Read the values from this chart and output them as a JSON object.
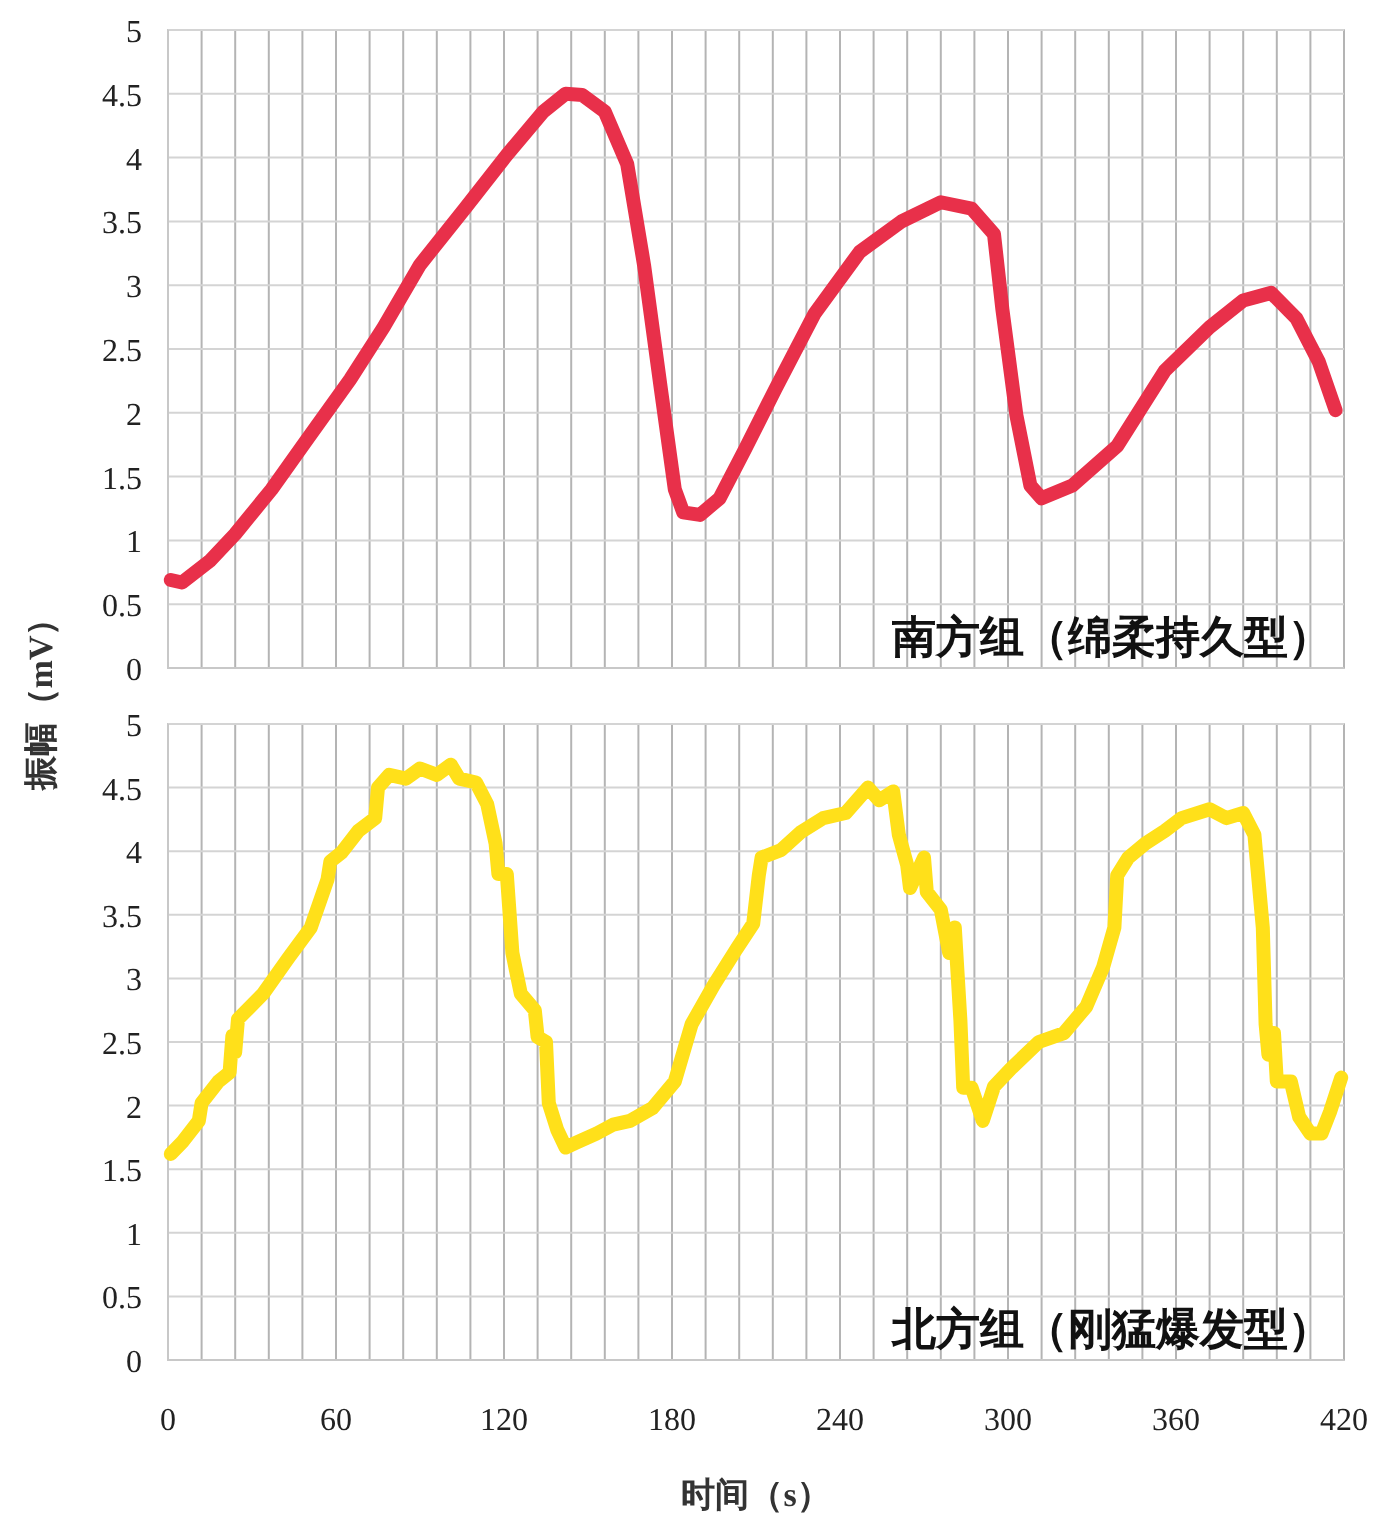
{
  "chart_data": [
    {
      "type": "line",
      "ylabel": "振幅（mV）",
      "annotations": [
        "南方组（绵柔持久型）"
      ],
      "xlim": [
        0,
        420
      ],
      "ylim": [
        0,
        5
      ],
      "xticks": [
        {
          "value": 0,
          "label": null
        },
        {
          "value": 12,
          "label": null
        },
        {
          "value": 24,
          "label": null
        },
        {
          "value": 36,
          "label": null
        },
        {
          "value": 48,
          "label": null
        },
        {
          "value": 60,
          "label": null
        },
        {
          "value": 72,
          "label": null
        },
        {
          "value": 84,
          "label": null
        },
        {
          "value": 96,
          "label": null
        },
        {
          "value": 108,
          "label": null
        },
        {
          "value": 120,
          "label": null
        },
        {
          "value": 132,
          "label": null
        },
        {
          "value": 144,
          "label": null
        },
        {
          "value": 156,
          "label": null
        },
        {
          "value": 168,
          "label": null
        },
        {
          "value": 180,
          "label": null
        },
        {
          "value": 192,
          "label": null
        },
        {
          "value": 204,
          "label": null
        },
        {
          "value": 216,
          "label": null
        },
        {
          "value": 228,
          "label": null
        },
        {
          "value": 240,
          "label": null
        },
        {
          "value": 252,
          "label": null
        },
        {
          "value": 264,
          "label": null
        },
        {
          "value": 276,
          "label": null
        },
        {
          "value": 288,
          "label": null
        },
        {
          "value": 300,
          "label": null
        },
        {
          "value": 312,
          "label": null
        },
        {
          "value": 324,
          "label": null
        },
        {
          "value": 336,
          "label": null
        },
        {
          "value": 348,
          "label": null
        },
        {
          "value": 360,
          "label": null
        },
        {
          "value": 372,
          "label": null
        },
        {
          "value": 384,
          "label": null
        },
        {
          "value": 396,
          "label": null
        },
        {
          "value": 408,
          "label": null
        },
        {
          "value": 420,
          "label": null
        }
      ],
      "yticks": [
        0,
        0.5,
        1,
        1.5,
        2,
        2.5,
        3,
        3.5,
        4,
        4.5,
        5
      ],
      "grid": true,
      "tick_labels": "y",
      "line_style": "solid",
      "series": [
        {
          "color": "#e8304a",
          "x": [
            1,
            5,
            15,
            24,
            37,
            49,
            65,
            77,
            90,
            106,
            121,
            134,
            142,
            148,
            156,
            164,
            170,
            176,
            181,
            184,
            190,
            197,
            206,
            217,
            231,
            247,
            262,
            276,
            287,
            295,
            298,
            303,
            308,
            312,
            323,
            339,
            356,
            372,
            384,
            394,
            403,
            411,
            417
          ],
          "values": [
            0.69,
            0.67,
            0.84,
            1.05,
            1.4,
            1.77,
            2.26,
            2.67,
            3.16,
            3.6,
            4.02,
            4.36,
            4.5,
            4.49,
            4.36,
            3.95,
            3.16,
            2.19,
            1.4,
            1.22,
            1.2,
            1.33,
            1.71,
            2.19,
            2.78,
            3.26,
            3.5,
            3.65,
            3.6,
            3.4,
            2.81,
            1.98,
            1.43,
            1.33,
            1.43,
            1.74,
            2.33,
            2.67,
            2.88,
            2.94,
            2.74,
            2.4,
            2.02
          ]
        }
      ]
    },
    {
      "type": "line",
      "xlabel": "时间（s）",
      "annotations": [
        "北方组（刚猛爆发型）"
      ],
      "xlim": [
        0,
        420
      ],
      "ylim": [
        0,
        5
      ],
      "xticks": [
        0,
        {
          "value": 12,
          "label": null
        },
        {
          "value": 24,
          "label": null
        },
        {
          "value": 36,
          "label": null
        },
        {
          "value": 48,
          "label": null
        },
        60,
        {
          "value": 72,
          "label": null
        },
        {
          "value": 84,
          "label": null
        },
        {
          "value": 96,
          "label": null
        },
        {
          "value": 108,
          "label": null
        },
        120,
        {
          "value": 132,
          "label": null
        },
        {
          "value": 144,
          "label": null
        },
        {
          "value": 156,
          "label": null
        },
        {
          "value": 168,
          "label": null
        },
        180,
        {
          "value": 192,
          "label": null
        },
        {
          "value": 204,
          "label": null
        },
        {
          "value": 216,
          "label": null
        },
        {
          "value": 228,
          "label": null
        },
        240,
        {
          "value": 252,
          "label": null
        },
        {
          "value": 264,
          "label": null
        },
        {
          "value": 276,
          "label": null
        },
        {
          "value": 288,
          "label": null
        },
        300,
        {
          "value": 312,
          "label": null
        },
        {
          "value": 324,
          "label": null
        },
        {
          "value": 336,
          "label": null
        },
        {
          "value": 348,
          "label": null
        },
        360,
        {
          "value": 372,
          "label": null
        },
        {
          "value": 384,
          "label": null
        },
        {
          "value": 396,
          "label": null
        },
        {
          "value": 408,
          "label": null
        },
        420
      ],
      "yticks": [
        0,
        0.5,
        1,
        1.5,
        2,
        2.5,
        3,
        3.5,
        4,
        4.5,
        5
      ],
      "grid": true,
      "line_style": "solid",
      "series": [
        {
          "color": "#ffe01a",
          "x": [
            1,
            5,
            11,
            12,
            18,
            22,
            23,
            24,
            25,
            34,
            43,
            51,
            57,
            58,
            62,
            68,
            74,
            75,
            79,
            85,
            90,
            96,
            101,
            104,
            110,
            114,
            117,
            118,
            121,
            123,
            126,
            131,
            132,
            135,
            136,
            139,
            142,
            146,
            153,
            159,
            165,
            173,
            181,
            187,
            195,
            203,
            209,
            211,
            212,
            219,
            226,
            234,
            242,
            250,
            254,
            259,
            261,
            264,
            265,
            270,
            271,
            276,
            279,
            281,
            283,
            284,
            287,
            291,
            295,
            301,
            311,
            320,
            328,
            334,
            338,
            339,
            343,
            349,
            356,
            362,
            372,
            378,
            384,
            388,
            391,
            392,
            393,
            395,
            396,
            401,
            404,
            408,
            412,
            415,
            419
          ],
          "values": [
            1.62,
            1.71,
            1.88,
            2.02,
            2.19,
            2.26,
            2.55,
            2.42,
            2.68,
            2.88,
            3.16,
            3.4,
            3.78,
            3.92,
            3.99,
            4.16,
            4.26,
            4.5,
            4.6,
            4.57,
            4.65,
            4.6,
            4.68,
            4.57,
            4.54,
            4.37,
            4.06,
            3.82,
            3.82,
            3.2,
            2.88,
            2.75,
            2.54,
            2.5,
            2.02,
            1.81,
            1.67,
            1.71,
            1.78,
            1.85,
            1.88,
            1.98,
            2.19,
            2.64,
            2.95,
            3.23,
            3.43,
            3.81,
            3.95,
            4.01,
            4.15,
            4.26,
            4.3,
            4.5,
            4.4,
            4.47,
            4.13,
            3.89,
            3.71,
            3.95,
            3.68,
            3.54,
            3.2,
            3.4,
            2.67,
            2.14,
            2.14,
            1.88,
            2.15,
            2.29,
            2.5,
            2.57,
            2.78,
            3.09,
            3.4,
            3.81,
            3.95,
            4.06,
            4.16,
            4.26,
            4.33,
            4.26,
            4.3,
            4.13,
            3.4,
            2.64,
            2.4,
            2.57,
            2.19,
            2.19,
            1.91,
            1.78,
            1.78,
            1.95,
            2.22
          ]
        }
      ]
    }
  ]
}
